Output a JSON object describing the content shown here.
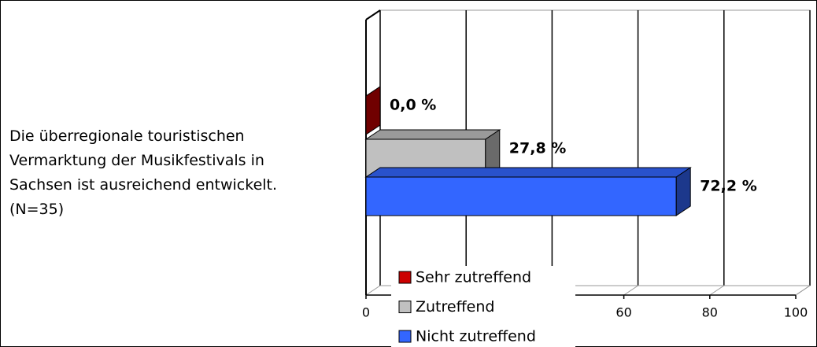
{
  "chart_data": {
    "type": "bar3d",
    "categories": [
      "Die überregionale touristischen Vermarktung der Musikfestivals in Sachsen ist ausreichend entwickelt. (N=35)"
    ],
    "series": [
      {
        "name": "Sehr zutreffend",
        "color": "#cc0000",
        "values": [
          0
        ],
        "value_labels": [
          "0,0 %"
        ]
      },
      {
        "name": "Zutreffend",
        "color": "#c0c0c0",
        "values": [
          27.8
        ],
        "value_labels": [
          "27,8 %"
        ]
      },
      {
        "name": "Nicht zutreffend",
        "color": "#3366ff",
        "values": [
          72.2
        ],
        "value_labels": [
          "72,2 %"
        ]
      }
    ],
    "xlim": [
      0,
      100
    ],
    "xticks": [
      0,
      20,
      40,
      60,
      80,
      100
    ],
    "grid": true
  }
}
